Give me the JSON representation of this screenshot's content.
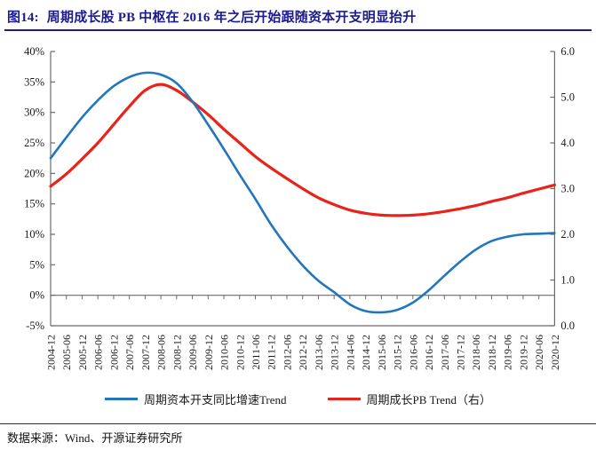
{
  "header": {
    "title_prefix": "图14:",
    "title": "周期成长股 PB 中枢在 2016 年之后开始跟随资本开支明显抬升"
  },
  "footer": {
    "source_label": "数据来源：",
    "source": "Wind、开源证券研究所"
  },
  "colors": {
    "title_navy": "#1b1b8f",
    "axis_gray": "#6b6b6b",
    "blue_line": "#2176bd",
    "red_line": "#e8231a"
  },
  "chart_data": {
    "type": "line",
    "title": "周期成长股 PB 中枢在 2016 年之后开始跟随资本开支明显抬升",
    "x": [
      "2004-12",
      "2005-06",
      "2005-12",
      "2006-06",
      "2006-12",
      "2007-06",
      "2007-12",
      "2008-06",
      "2008-12",
      "2009-06",
      "2009-12",
      "2010-06",
      "2010-12",
      "2011-06",
      "2011-12",
      "2012-06",
      "2012-12",
      "2013-06",
      "2013-12",
      "2014-06",
      "2014-12",
      "2015-06",
      "2015-12",
      "2016-06",
      "2016-12",
      "2017-06",
      "2017-12",
      "2018-06",
      "2018-12",
      "2019-06",
      "2019-12",
      "2020-06",
      "2020-12"
    ],
    "series": [
      {
        "name": "周期资本开支同比增速Trend",
        "axis": "left",
        "color": "#2176bd",
        "unit": "%",
        "values": [
          22.5,
          25.9,
          29.2,
          32.0,
          34.3,
          35.8,
          36.5,
          36.2,
          34.8,
          31.8,
          28.0,
          24.0,
          19.8,
          15.8,
          11.6,
          8.0,
          4.9,
          2.4,
          0.5,
          -1.5,
          -2.6,
          -2.8,
          -2.4,
          -1.2,
          0.8,
          3.2,
          5.5,
          7.5,
          8.9,
          9.6,
          10.0,
          10.1,
          10.2
        ]
      },
      {
        "name": "周期成长PB Trend（右）",
        "axis": "right",
        "color": "#e8231a",
        "unit": "x",
        "values": [
          3.05,
          3.32,
          3.65,
          4.0,
          4.4,
          4.8,
          5.15,
          5.28,
          5.15,
          4.9,
          4.62,
          4.3,
          4.0,
          3.7,
          3.45,
          3.22,
          3.0,
          2.8,
          2.65,
          2.53,
          2.46,
          2.42,
          2.41,
          2.42,
          2.45,
          2.5,
          2.56,
          2.63,
          2.72,
          2.8,
          2.9,
          2.99,
          3.08
        ]
      }
    ],
    "left_axis": {
      "min": -5,
      "max": 40,
      "step": 5,
      "tick_labels": [
        "40%",
        "35%",
        "30%",
        "25%",
        "20%",
        "15%",
        "10%",
        "5%",
        "0%",
        "-5%"
      ]
    },
    "right_axis": {
      "min": 0,
      "max": 6,
      "step": 1,
      "tick_labels": [
        "6.0",
        "5.0",
        "4.0",
        "3.0",
        "2.0",
        "1.0",
        "0.0"
      ]
    },
    "baseline_left_value": 0,
    "grid": "off",
    "legend_position": "bottom-center"
  }
}
